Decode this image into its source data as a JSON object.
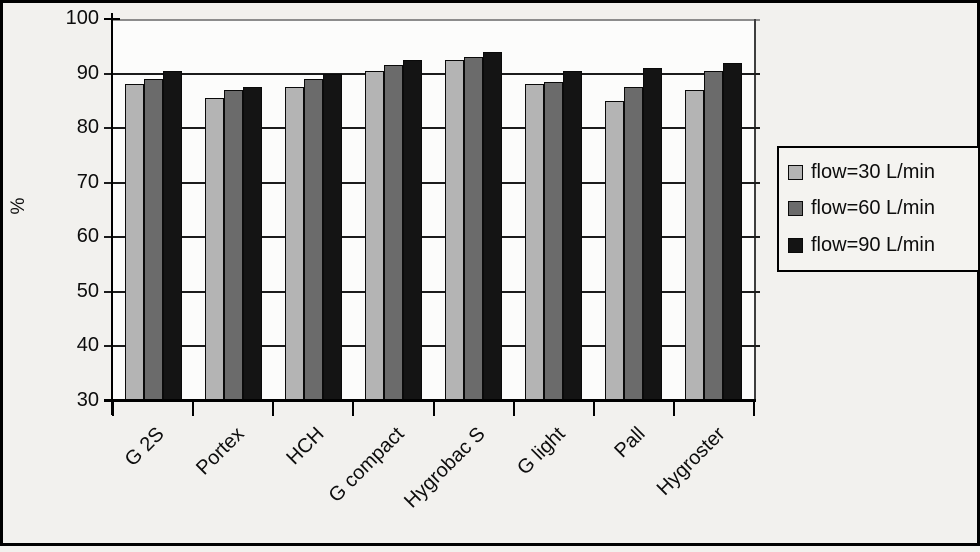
{
  "chart_data": {
    "type": "bar",
    "title": "",
    "xlabel": "",
    "ylabel": "%",
    "ylim": [
      30,
      100
    ],
    "yticks": [
      30,
      40,
      50,
      60,
      70,
      80,
      90,
      100
    ],
    "grid": true,
    "legend_position": "right",
    "categories": [
      "G 2S",
      "Portex",
      "HCH",
      "G compact",
      "Hygrobac S",
      "G light",
      "Pall",
      "Hygroster"
    ],
    "series": [
      {
        "name": "flow=30 L/min",
        "color": "#b4b4b4",
        "values": [
          88,
          85.5,
          87.5,
          90.5,
          92.5,
          88,
          85,
          87
        ]
      },
      {
        "name": "flow=60 L/min",
        "color": "#6b6b6b",
        "values": [
          89,
          87,
          89,
          91.5,
          93,
          88.5,
          87.5,
          90.5
        ]
      },
      {
        "name": "flow=90 L/min",
        "color": "#141414",
        "values": [
          90.5,
          87.5,
          90,
          92.5,
          94,
          90.5,
          91,
          92
        ]
      }
    ],
    "colors": {
      "page_background": "#f2f1ee",
      "plot_background": "#fcfcfb",
      "gridline": "#1c1c1c",
      "axis": "#000000",
      "frame_border": "#000000"
    }
  }
}
